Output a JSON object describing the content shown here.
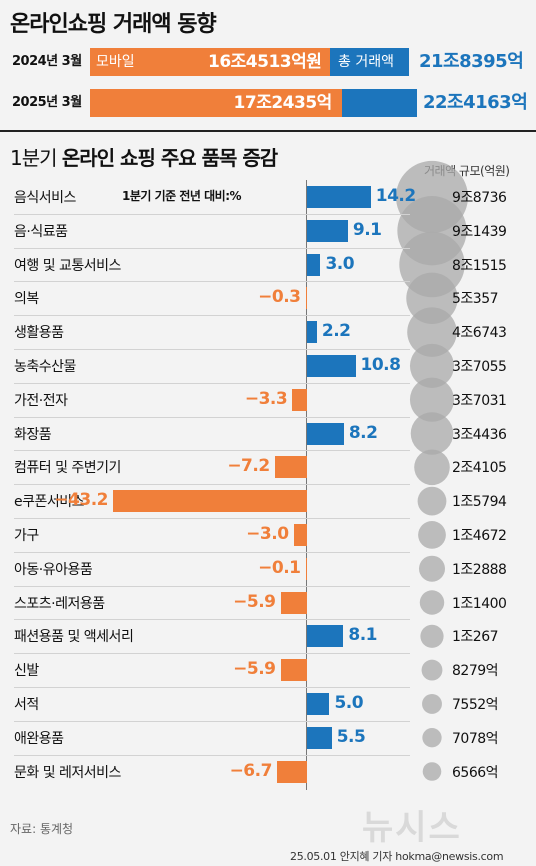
{
  "title": "온라인쇼핑 거래액 동향",
  "summary": {
    "rows": [
      {
        "year": "2024년 3월",
        "mobile_label": "모바일",
        "mobile_value": "16조4513억원",
        "total_label": "총 거래액",
        "total_value": "21조8395억",
        "mobile": 164513,
        "total": 218395
      },
      {
        "year": "2025년 3월",
        "mobile_label": "",
        "mobile_value": "17조2435억",
        "total_label": "",
        "total_value": "22조4163억",
        "mobile": 172435,
        "total": 224163
      }
    ],
    "colors": {
      "mobile": "#f07f3a",
      "total": "#1c75bc"
    }
  },
  "section": {
    "title_prefix": "1분기 ",
    "title_bold": "온라인 쇼핑 주요 품목 증감",
    "size_header": "거래액 규모(억원)",
    "note": "1분기 기준 전년 대비:%"
  },
  "chart_data": {
    "type": "bar",
    "categories": [
      "음식서비스",
      "음·식료품",
      "여행 및 교통서비스",
      "의복",
      "생활용품",
      "농축수산물",
      "가전·전자",
      "화장품",
      "컴퓨터 및 주변기기",
      "e쿠폰서비스",
      "가구",
      "아동·유아용품",
      "스포츠·레저용품",
      "패션용품 및 액세서리",
      "신발",
      "서적",
      "애완용품",
      "문화 및 레저서비스"
    ],
    "values": [
      14.2,
      9.1,
      3.0,
      -0.3,
      2.2,
      10.8,
      -3.3,
      8.2,
      -7.2,
      -43.2,
      -3.0,
      -0.1,
      -5.9,
      8.1,
      -5.9,
      5.0,
      5.5,
      -6.7
    ],
    "value_labels": [
      "14.2",
      "9.1",
      "3.0",
      "−0.3",
      "2.2",
      "10.8",
      "−3.3",
      "8.2",
      "−7.2",
      "−43.2",
      "−3.0",
      "−0.1",
      "−5.9",
      "8.1",
      "−5.9",
      "5.0",
      "5.5",
      "−6.7"
    ],
    "sizes": [
      98736,
      91439,
      81515,
      50357,
      46743,
      37055,
      37031,
      34436,
      24105,
      15794,
      14672,
      12888,
      11400,
      10267,
      8279,
      7552,
      7078,
      6566
    ],
    "size_labels": [
      "9조8736",
      "9조1439",
      "8조1515",
      "5조357",
      "4조6743",
      "3조7055",
      "3조7031",
      "3조4436",
      "2조4105",
      "1조5794",
      "1조4672",
      "1조2888",
      "1조1400",
      "1조267",
      "8279억",
      "7552억",
      "7078억",
      "6566억"
    ],
    "colors": {
      "positive": "#1c75bc",
      "negative": "#f07f3a",
      "bubble": "#a9a9a9"
    }
  },
  "source": "자료: 통계청",
  "logo": "뉴시스",
  "credit": "25.05.01 안지혜 기자 hokma@newsis.com"
}
